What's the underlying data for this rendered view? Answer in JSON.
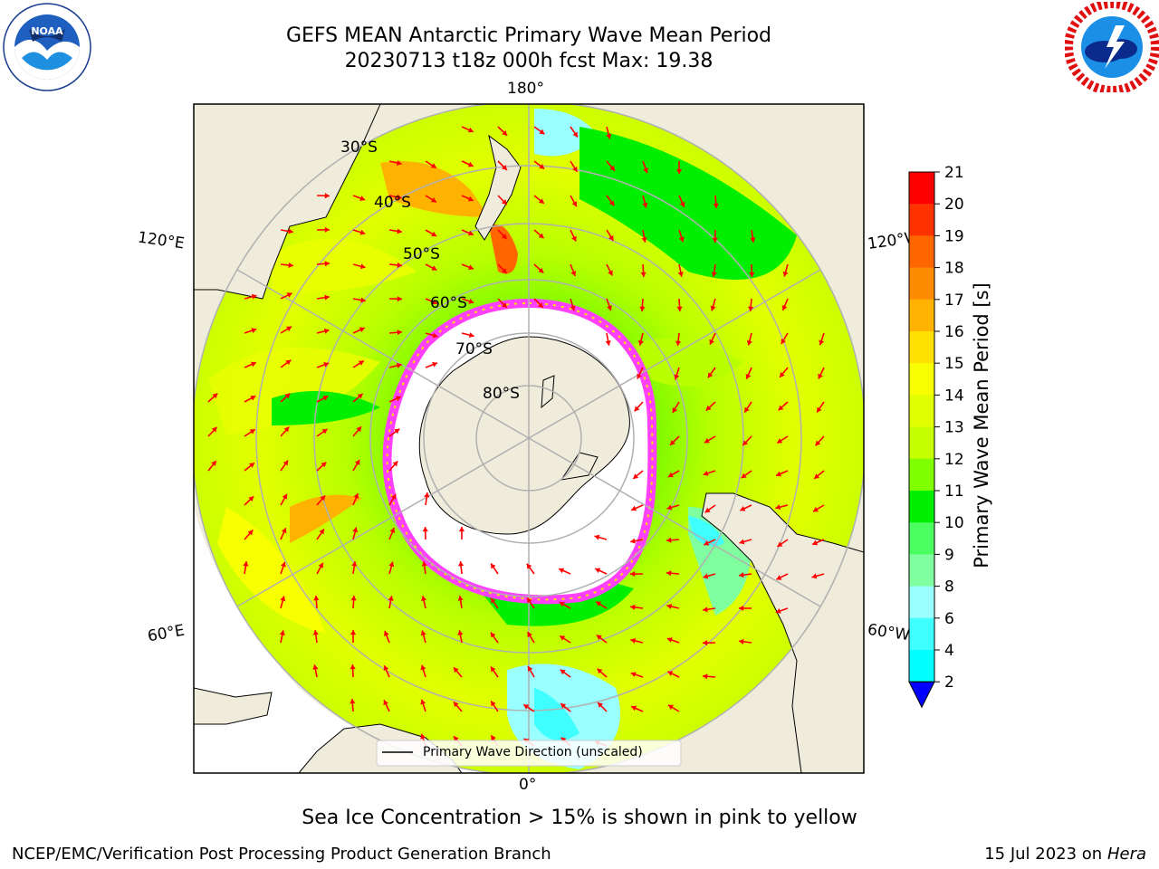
{
  "header": {
    "title_line1": "GEFS MEAN Antarctic Primary Wave Mean Period",
    "title_line2": "20230713 t18z 000h fcst   Max: 19.38"
  },
  "logos": {
    "left": {
      "name": "NOAA",
      "ring_text": "NATIONAL OCEANIC AND ATMOSPHERIC ADMINISTRATION · U.S. DEPARTMENT OF COMMERCE"
    },
    "right": {
      "name": "NATIONAL WEATHER SERVICE"
    }
  },
  "map": {
    "lon_labels": {
      "top": "180°",
      "bottom": "0°",
      "left_upper": "120°E",
      "left_lower": "60°E",
      "right_upper": "120°W",
      "right_lower": "60°W"
    },
    "lat_labels": [
      "30°S",
      "40°S",
      "50°S",
      "60°S",
      "70°S",
      "80°S"
    ],
    "legend_label": "Primary Wave Direction (unscaled)",
    "colors": {
      "land": "#efecdc",
      "ice": "#ff40ff",
      "arrow": "#ff0000"
    }
  },
  "colorbar": {
    "label": "Primary Wave Mean Period [s]",
    "ticks": [
      "21",
      "20",
      "19",
      "18",
      "17",
      "16",
      "15",
      "14",
      "13",
      "12",
      "11",
      "10",
      "9",
      "8",
      "6",
      "4",
      "2"
    ],
    "colors": [
      "#ff0000",
      "#ff3300",
      "#ff6600",
      "#ff8c00",
      "#ffb300",
      "#ffe000",
      "#f7ff00",
      "#e2ff00",
      "#c5ff00",
      "#80ff00",
      "#00ee00",
      "#4cff60",
      "#80ffa0",
      "#99ffff",
      "#40ffff",
      "#00ffff",
      "#0088ff",
      "#0000ff"
    ]
  },
  "footer": {
    "note": "Sea Ice Concentration > 15% is shown in pink to yellow",
    "credit_left": "NCEP/EMC/Verification Post Processing Product Generation Branch",
    "credit_date": "15 Jul 2023 on ",
    "credit_host": "Hera"
  }
}
